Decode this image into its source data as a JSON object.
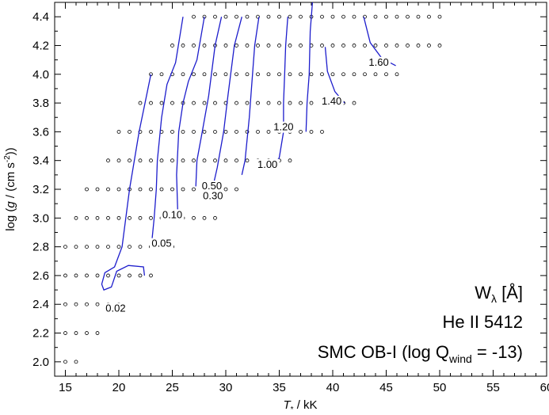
{
  "chart_data": {
    "type": "line",
    "xlabel": "T* / kK",
    "ylabel": "log (g / (cm s-2))",
    "xlim": [
      14,
      60
    ],
    "ylim": [
      1.9,
      4.5
    ],
    "xticks": [
      15,
      20,
      25,
      30,
      35,
      40,
      45,
      50,
      55,
      60
    ],
    "yticks": [
      2.0,
      2.2,
      2.4,
      2.6,
      2.8,
      3.0,
      3.2,
      3.4,
      3.6,
      3.8,
      4.0,
      4.2,
      4.4
    ],
    "grid": false,
    "annotation": {
      "line1": "Wλ [Å]",
      "line2": "He II 5412",
      "line3": "SMC OB-I (log Qwind = -13)"
    },
    "model_grid": [
      {
        "logg": 4.4,
        "t_min": 27,
        "t_max": 50
      },
      {
        "logg": 4.2,
        "t_min": 25,
        "t_max": 50
      },
      {
        "logg": 4.0,
        "t_min": 23,
        "t_max": 46
      },
      {
        "logg": 3.8,
        "t_min": 22,
        "t_max": 42
      },
      {
        "logg": 3.6,
        "t_min": 20,
        "t_max": 39
      },
      {
        "logg": 3.4,
        "t_min": 19,
        "t_max": 36
      },
      {
        "logg": 3.2,
        "t_min": 17,
        "t_max": 31
      },
      {
        "logg": 3.0,
        "t_min": 16,
        "t_max": 29
      },
      {
        "logg": 2.8,
        "t_min": 15,
        "t_max": 25
      },
      {
        "logg": 2.6,
        "t_min": 15,
        "t_max": 23
      },
      {
        "logg": 2.4,
        "t_min": 15,
        "t_max": 20
      },
      {
        "logg": 2.2,
        "t_min": 15,
        "t_max": 18
      },
      {
        "logg": 2.0,
        "t_min": 15,
        "t_max": 16
      }
    ],
    "contours": [
      {
        "label": "0.02",
        "label_at": [
          19.7,
          2.35
        ],
        "points": [
          [
            23.0,
            4.0
          ],
          [
            21.9,
            3.6
          ],
          [
            21.0,
            3.2
          ],
          [
            20.3,
            2.8
          ],
          [
            19.6,
            2.66
          ],
          [
            18.7,
            2.62
          ],
          [
            18.4,
            2.54
          ],
          [
            18.6,
            2.5
          ],
          [
            19.3,
            2.52
          ],
          [
            19.8,
            2.63
          ],
          [
            20.9,
            2.67
          ],
          [
            22.3,
            2.66
          ],
          [
            22.4,
            2.6
          ]
        ]
      },
      {
        "label": "0.05",
        "label_at": [
          24.0,
          2.8
        ],
        "points": [
          [
            26.0,
            4.4
          ],
          [
            25.3,
            4.08
          ],
          [
            24.5,
            3.93
          ],
          [
            24.0,
            3.7
          ],
          [
            23.6,
            3.4
          ],
          [
            23.5,
            3.2
          ],
          [
            23.3,
            3.0
          ],
          [
            23.1,
            2.85
          ]
        ]
      },
      {
        "label": "0.10",
        "label_at": [
          25.0,
          3.0
        ],
        "points": [
          [
            28.0,
            4.4
          ],
          [
            27.3,
            4.1
          ],
          [
            26.5,
            3.95
          ],
          [
            26.0,
            3.8
          ],
          [
            25.6,
            3.6
          ],
          [
            25.4,
            3.3
          ],
          [
            25.5,
            3.05
          ]
        ]
      },
      {
        "label": "0.30",
        "label_at": [
          28.8,
          3.13
        ],
        "points": [
          [
            29.6,
            4.4
          ],
          [
            29.0,
            4.2
          ],
          [
            28.4,
            3.85
          ],
          [
            27.8,
            3.6
          ],
          [
            27.3,
            3.4
          ],
          [
            27.2,
            3.22
          ]
        ]
      },
      {
        "label": "0.50",
        "label_at": [
          28.7,
          3.2
        ],
        "points": [
          [
            31.5,
            4.4
          ],
          [
            30.8,
            4.2
          ],
          [
            30.2,
            3.85
          ],
          [
            29.8,
            3.6
          ],
          [
            29.2,
            3.35
          ],
          [
            28.9,
            3.25
          ]
        ]
      },
      {
        "label": "1.00",
        "label_at": [
          33.9,
          3.35
        ],
        "points": [
          [
            33.1,
            4.4
          ],
          [
            32.7,
            4.2
          ],
          [
            32.4,
            3.9
          ],
          [
            32.2,
            3.7
          ],
          [
            31.8,
            3.4
          ],
          [
            31.5,
            3.3
          ]
        ]
      },
      {
        "label": "1.20",
        "label_at": [
          35.4,
          3.61
        ],
        "points": [
          [
            35.8,
            4.4
          ],
          [
            35.6,
            4.2
          ],
          [
            35.5,
            4.0
          ],
          [
            35.4,
            3.8
          ],
          [
            35.4,
            3.6
          ],
          [
            35.0,
            3.42
          ],
          [
            34.5,
            3.37
          ]
        ]
      },
      {
        "label": "1.40",
        "label_at": [
          39.9,
          3.79
        ],
        "points": [
          [
            38.1,
            4.5
          ],
          [
            37.9,
            4.3
          ],
          [
            37.8,
            4.0
          ],
          [
            37.6,
            3.8
          ],
          [
            37.5,
            3.6
          ]
        ]
      },
      {
        "label": "1.40",
        "label_at": [
          39.9,
          3.79
        ],
        "points": [
          [
            39.3,
            4.19
          ],
          [
            39.5,
            4.02
          ],
          [
            40.2,
            3.88
          ],
          [
            41.1,
            3.8
          ]
        ]
      },
      {
        "label": "1.60",
        "label_at": [
          44.3,
          4.06
        ],
        "points": [
          [
            42.9,
            4.4
          ],
          [
            43.5,
            4.22
          ],
          [
            44.6,
            4.11
          ],
          [
            45.9,
            4.06
          ]
        ]
      }
    ]
  }
}
